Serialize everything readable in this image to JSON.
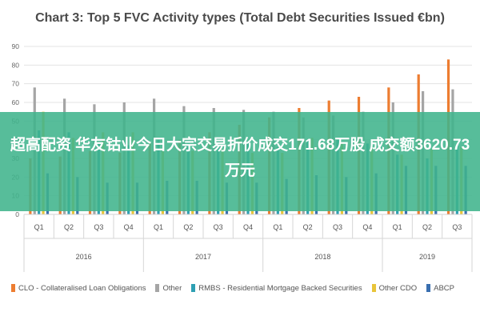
{
  "title": "Chart 3: Top 5 FVC Activity types (Total Debt Securities Issued €bn)",
  "overlay": {
    "text": "超高配资 华友钴业今日大宗交易折价成交171.68万股 成交额3620.73万元"
  },
  "colors": {
    "clo": "#ed7d31",
    "other": "#a5a5a5",
    "rmbs": "#2e9fb3",
    "other_cdo": "#e8c43a",
    "abcp": "#3a6fb0",
    "overlay": "#40b48c"
  },
  "chart_data": {
    "type": "bar",
    "title": "Chart 3: Top 5 FVC Activity types (Total Debt Securities Issued €bn)",
    "xlabel": "",
    "ylabel": "",
    "ylim": [
      0,
      90
    ],
    "yticks": [
      0,
      10,
      20,
      30,
      40,
      50,
      60,
      70,
      80,
      90
    ],
    "grid": true,
    "legend_position": "bottom",
    "categories": [
      "Q1",
      "Q2",
      "Q3",
      "Q4",
      "Q1",
      "Q2",
      "Q3",
      "Q4",
      "Q1",
      "Q2",
      "Q3",
      "Q4",
      "Q1",
      "Q2",
      "Q3"
    ],
    "year_groups": [
      {
        "label": "2016",
        "count": 4
      },
      {
        "label": "2017",
        "count": 4
      },
      {
        "label": "2018",
        "count": 4
      },
      {
        "label": "2019",
        "count": 3
      }
    ],
    "series": [
      {
        "name": "CLO - Collateralised Loan Obligations",
        "key": "clo",
        "values": [
          30,
          31,
          34,
          33,
          38,
          40,
          44,
          48,
          52,
          57,
          61,
          63,
          68,
          75,
          83
        ]
      },
      {
        "name": "Other",
        "key": "other",
        "values": [
          68,
          62,
          59,
          60,
          62,
          58,
          57,
          56,
          55,
          52,
          53,
          55,
          60,
          66,
          67
        ]
      },
      {
        "name": "RMBS - Residential Mortgage Backed Securities",
        "key": "rmbs",
        "values": [
          45,
          44,
          38,
          37,
          40,
          38,
          37,
          38,
          36,
          40,
          40,
          38,
          32,
          30,
          37
        ]
      },
      {
        "name": "Other CDO",
        "key": "other_cdo",
        "values": [
          55,
          41,
          44,
          44,
          34,
          34,
          35,
          33,
          33,
          41,
          38,
          36,
          32,
          35,
          36
        ]
      },
      {
        "name": "ABCP",
        "key": "abcp",
        "values": [
          22,
          20,
          17,
          17,
          18,
          18,
          17,
          17,
          19,
          21,
          20,
          22,
          26,
          26,
          26
        ]
      }
    ]
  }
}
